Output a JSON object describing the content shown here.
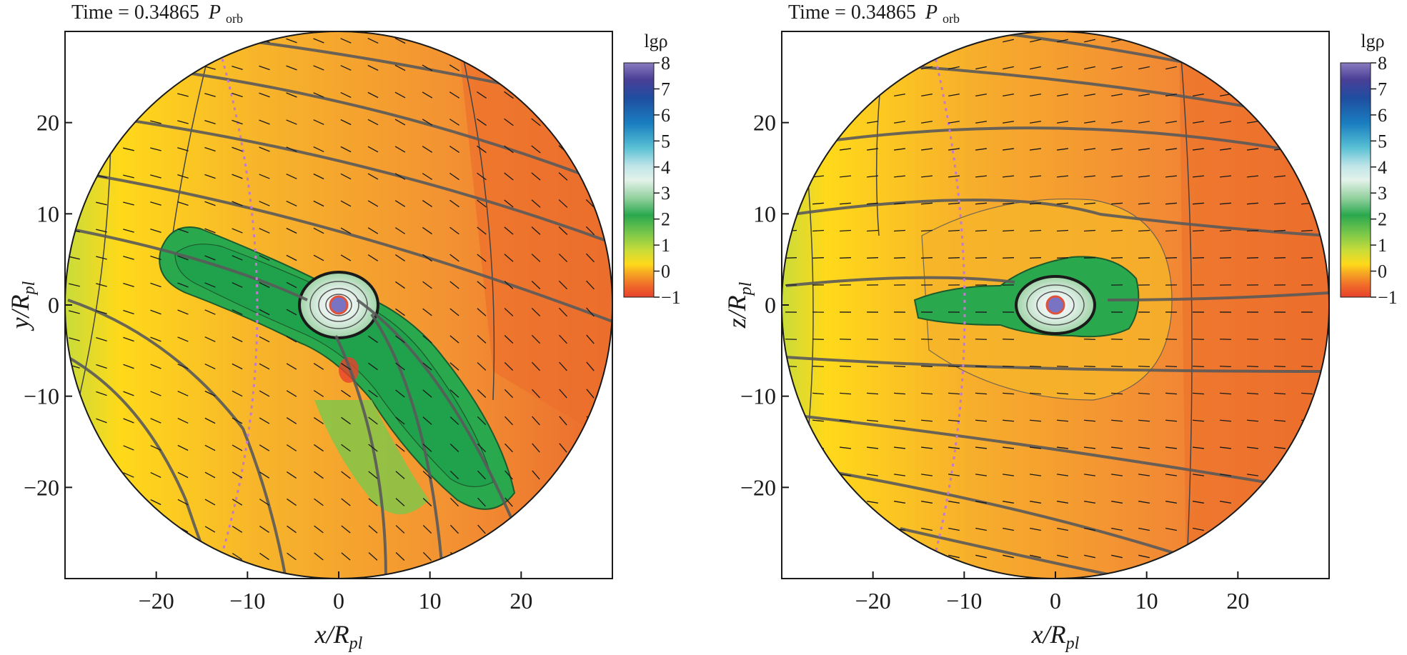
{
  "chart_data": [
    {
      "type": "heatmap",
      "title": "Time = 0.34865 P_orb",
      "title_parts": {
        "prefix": "Time = 0.34865",
        "symbol": "P",
        "subscript": "orb"
      },
      "xlabel": {
        "text": "x/R",
        "sub": "pl"
      },
      "ylabel": {
        "text": "y/R",
        "sub": "pl"
      },
      "xlim": [
        -30,
        30
      ],
      "ylim": [
        -30,
        30
      ],
      "x_ticks": [
        -20,
        -10,
        0,
        10,
        20
      ],
      "y_ticks": [
        20,
        10,
        0,
        -10,
        -20
      ],
      "x_tick_labels": [
        "−20",
        "−10",
        "0",
        "10",
        "20"
      ],
      "y_tick_labels": [
        "20",
        "10",
        "0",
        "−10",
        "−20"
      ],
      "domain": "circle radius 30",
      "projection": "xy",
      "colorbar": {
        "label": "lgρ",
        "min": -1,
        "max": 8,
        "ticks": [
          "8",
          "7",
          "6",
          "5",
          "4",
          "3",
          "2",
          "1",
          "0",
          "−1"
        ]
      }
    },
    {
      "type": "heatmap",
      "title": "Time = 0.34865 P_orb",
      "title_parts": {
        "prefix": "Time = 0.34865",
        "symbol": "P",
        "subscript": "orb"
      },
      "xlabel": {
        "text": "x/R",
        "sub": "pl"
      },
      "ylabel": {
        "text": "z/R",
        "sub": "pl"
      },
      "xlim": [
        -30,
        30
      ],
      "ylim": [
        -30,
        30
      ],
      "x_ticks": [
        -20,
        -10,
        0,
        10,
        20
      ],
      "y_ticks": [
        20,
        10,
        0,
        -10,
        -20
      ],
      "x_tick_labels": [
        "−20",
        "−10",
        "0",
        "10",
        "20"
      ],
      "y_tick_labels": [
        "20",
        "10",
        "0",
        "−10",
        "−20"
      ],
      "domain": "circle radius 30",
      "projection": "xz",
      "colorbar": {
        "label": "lgρ",
        "min": -1,
        "max": 8,
        "ticks": [
          "8",
          "7",
          "6",
          "5",
          "4",
          "3",
          "2",
          "1",
          "0",
          "−1"
        ]
      }
    }
  ],
  "colors": {
    "cb_stops": [
      "#e8412c",
      "#f06a2a",
      "#f5a423",
      "#ffd91a",
      "#c8dc3a",
      "#7cc84a",
      "#2aa84e",
      "#8fcf9a",
      "#e3f2ea",
      "#bfe5e8",
      "#56bfd3",
      "#1a7fc0",
      "#1f4da0",
      "#4a3f96",
      "#8a7cc0"
    ],
    "planet": "#7a73c2",
    "planet_ring": "#e0523a",
    "streamline": "#5a5a5a",
    "roche": "#c07ad0"
  }
}
